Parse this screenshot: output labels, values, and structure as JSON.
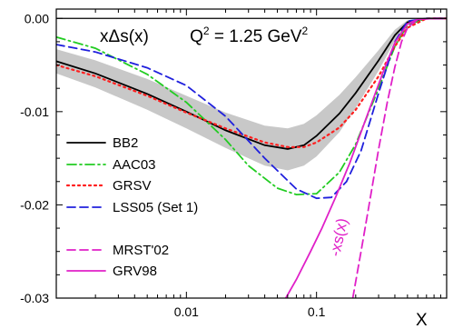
{
  "chart_data": {
    "type": "line",
    "title_parts": {
      "lhs": "xΔs(x)",
      "q2_text": "Q",
      "q2_exp": "2",
      "q2_value": " = 1.25 GeV",
      "unit_exp": "2"
    },
    "xlabel": "X",
    "ylabel": "",
    "xscale": "log",
    "xlim": [
      0.001,
      1.0
    ],
    "ylim": [
      -0.03,
      0.001
    ],
    "x_ticks": [
      {
        "value": 0.01,
        "label": "0.01"
      },
      {
        "value": 0.1,
        "label": "0.1"
      }
    ],
    "y_ticks": [
      {
        "value": 0.0,
        "label": "0.00"
      },
      {
        "value": -0.01,
        "label": "-0.01"
      },
      {
        "value": -0.02,
        "label": "-0.02"
      },
      {
        "value": -0.03,
        "label": "-0.03"
      }
    ],
    "legend_placement": "lower-left",
    "annotation": {
      "text": "-xs(x)",
      "color": "#e020c8"
    },
    "band": {
      "x": [
        0.001,
        0.002,
        0.005,
        0.01,
        0.02,
        0.04,
        0.06,
        0.08,
        0.1,
        0.15,
        0.2,
        0.3,
        0.4,
        0.5,
        0.7,
        1.0
      ],
      "upper": [
        -0.0033,
        -0.0045,
        -0.0065,
        -0.0083,
        -0.0101,
        -0.0115,
        -0.0118,
        -0.0113,
        -0.0104,
        -0.0082,
        -0.0063,
        -0.0034,
        -0.0012,
        -0.0002,
        0.0,
        0.0
      ],
      "lower": [
        -0.0059,
        -0.0074,
        -0.0098,
        -0.0118,
        -0.0139,
        -0.0158,
        -0.0163,
        -0.0158,
        -0.0148,
        -0.0122,
        -0.0096,
        -0.0056,
        -0.0024,
        -0.0006,
        0.0,
        0.0
      ],
      "color": "#c8c8c8"
    },
    "series": [
      {
        "name": "BB2",
        "color": "#000000",
        "dash": "solid",
        "x": [
          0.001,
          0.002,
          0.005,
          0.01,
          0.02,
          0.04,
          0.06,
          0.08,
          0.1,
          0.15,
          0.2,
          0.3,
          0.4,
          0.5,
          0.7,
          1.0
        ],
        "y": [
          -0.0046,
          -0.0059,
          -0.0081,
          -0.01,
          -0.012,
          -0.0136,
          -0.014,
          -0.0136,
          -0.0126,
          -0.0102,
          -0.008,
          -0.0045,
          -0.0018,
          -0.0004,
          0.0,
          0.0
        ]
      },
      {
        "name": "AAC03",
        "color": "#22cc22",
        "dash": "dashdot",
        "x": [
          0.001,
          0.002,
          0.005,
          0.01,
          0.02,
          0.03,
          0.05,
          0.07,
          0.1,
          0.15,
          0.2,
          0.3,
          0.4,
          0.5,
          0.7,
          1.0
        ],
        "y": [
          -0.002,
          -0.0032,
          -0.006,
          -0.009,
          -0.013,
          -0.0158,
          -0.0182,
          -0.0189,
          -0.0188,
          -0.0165,
          -0.0135,
          -0.0075,
          -0.003,
          -0.0007,
          0.0,
          0.0
        ]
      },
      {
        "name": "GRSV",
        "color": "#ff2020",
        "dash": "dotted",
        "x": [
          0.001,
          0.002,
          0.005,
          0.01,
          0.02,
          0.04,
          0.06,
          0.08,
          0.1,
          0.15,
          0.2,
          0.3,
          0.4,
          0.5,
          0.7,
          1.0
        ],
        "y": [
          -0.005,
          -0.0062,
          -0.0083,
          -0.0101,
          -0.0118,
          -0.0133,
          -0.0138,
          -0.0138,
          -0.0133,
          -0.0117,
          -0.0098,
          -0.0062,
          -0.003,
          -0.001,
          0.0,
          0.0
        ]
      },
      {
        "name": "LSS05 (Set 1)",
        "color": "#2020dd",
        "dash": "dashed",
        "x": [
          0.001,
          0.002,
          0.005,
          0.01,
          0.02,
          0.04,
          0.07,
          0.1,
          0.13,
          0.17,
          0.22,
          0.3,
          0.4,
          0.5,
          0.7,
          1.0
        ],
        "y": [
          -0.0028,
          -0.0036,
          -0.0053,
          -0.0072,
          -0.0105,
          -0.015,
          -0.0183,
          -0.0193,
          -0.0192,
          -0.0175,
          -0.0142,
          -0.008,
          -0.0025,
          -0.0003,
          0.0,
          0.0
        ]
      },
      {
        "name": "MRST'02",
        "color": "#e020c8",
        "dash": "dashed",
        "x": [
          0.19,
          0.22,
          0.25,
          0.3,
          0.35,
          0.4,
          0.45,
          0.5,
          0.6,
          0.8,
          1.0
        ],
        "y": [
          -0.03,
          -0.025,
          -0.0205,
          -0.014,
          -0.009,
          -0.0052,
          -0.0025,
          -0.001,
          -0.0001,
          0.0,
          0.0
        ]
      },
      {
        "name": "GRV98",
        "color": "#e020c8",
        "dash": "solid",
        "x": [
          0.058,
          0.07,
          0.09,
          0.11,
          0.14,
          0.18,
          0.22,
          0.27,
          0.33,
          0.4,
          0.5,
          0.6,
          0.8,
          1.0
        ],
        "y": [
          -0.03,
          -0.028,
          -0.025,
          -0.0225,
          -0.0192,
          -0.0155,
          -0.0122,
          -0.0088,
          -0.0055,
          -0.0026,
          -0.0006,
          -0.0001,
          0.0,
          0.0
        ]
      }
    ]
  }
}
